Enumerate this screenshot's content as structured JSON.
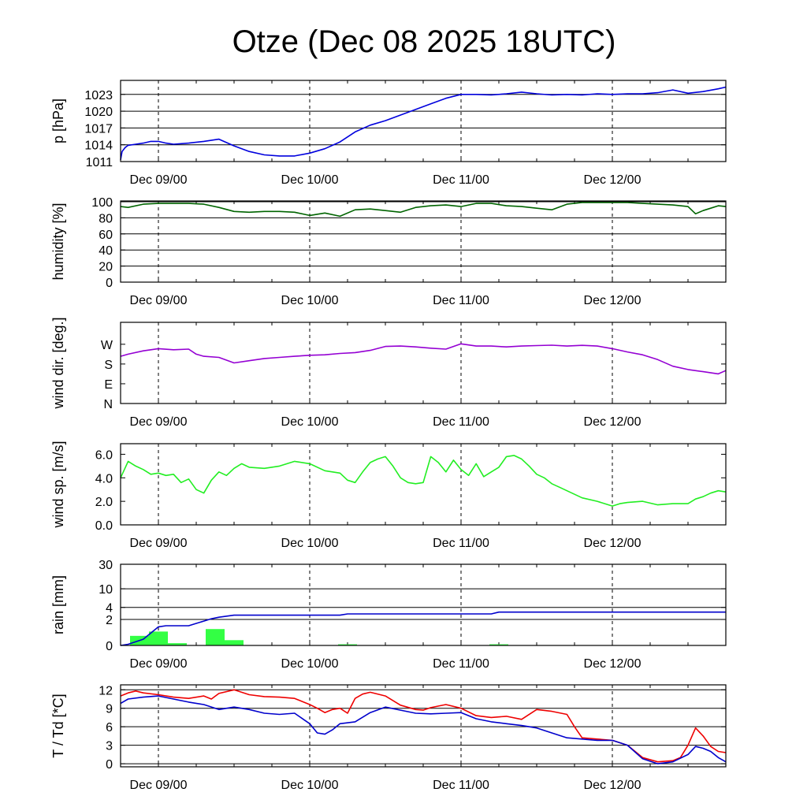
{
  "title": "Otze (Dec 08 2025 18UTC)",
  "x_ticks": [
    "Dec 09/00",
    "Dec 10/00",
    "Dec 11/00",
    "Dec 12/00"
  ],
  "colors": {
    "pressure": "#0000dd",
    "humidity": "#006400",
    "wind_dir": "#9400d3",
    "wind_speed": "#22ee22",
    "rain_bar": "#33ff44",
    "rain_cum": "#0000cc",
    "temperature": "#ee0000",
    "dewpoint": "#0000cc"
  },
  "chart_data": [
    {
      "type": "line",
      "id": "pressure",
      "ylabel": "p [hPa]",
      "yticks": [
        "1023",
        "1020",
        "1017",
        "1014",
        "1011"
      ],
      "ylim": [
        1011,
        1025.5
      ],
      "xlim_days": [
        -0.25,
        3.75
      ],
      "gridlines": [
        1011,
        1014,
        1017,
        1020,
        1023
      ],
      "series": [
        {
          "name": "p",
          "x": [
            -0.25,
            -0.24,
            -0.22,
            -0.2,
            -0.15,
            -0.1,
            -0.05,
            0,
            0.05,
            0.1,
            0.2,
            0.3,
            0.4,
            0.5,
            0.6,
            0.7,
            0.8,
            0.9,
            1.0,
            1.1,
            1.2,
            1.3,
            1.4,
            1.5,
            1.6,
            1.7,
            1.8,
            1.9,
            2.0,
            2.1,
            2.2,
            2.3,
            2.4,
            2.5,
            2.6,
            2.7,
            2.8,
            2.9,
            3.0,
            3.1,
            3.2,
            3.3,
            3.4,
            3.5,
            3.6,
            3.7,
            3.75
          ],
          "values": [
            1011.3,
            1012.8,
            1013.5,
            1013.9,
            1014.1,
            1014.3,
            1014.6,
            1014.6,
            1014.3,
            1014.1,
            1014.3,
            1014.6,
            1015.0,
            1013.8,
            1012.8,
            1012.2,
            1012.0,
            1012.0,
            1012.5,
            1013.3,
            1014.5,
            1016.3,
            1017.5,
            1018.3,
            1019.3,
            1020.3,
            1021.3,
            1022.3,
            1023.0,
            1023.0,
            1022.9,
            1023.1,
            1023.4,
            1023.1,
            1022.9,
            1023.0,
            1022.9,
            1023.1,
            1023.0,
            1023.1,
            1023.1,
            1023.3,
            1023.8,
            1023.2,
            1023.5,
            1024.0,
            1024.3
          ]
        }
      ]
    },
    {
      "type": "line",
      "id": "humidity",
      "ylabel": "humidity [%]",
      "yticks": [
        "100",
        "80",
        "60",
        "40",
        "20",
        "0"
      ],
      "ylim": [
        0,
        101
      ],
      "xlim_days": [
        -0.25,
        3.75
      ],
      "gridlines": [
        0,
        20,
        40,
        60,
        80,
        100
      ],
      "series": [
        {
          "name": "rh",
          "x": [
            -0.25,
            -0.2,
            -0.1,
            0,
            0.1,
            0.2,
            0.3,
            0.4,
            0.5,
            0.6,
            0.7,
            0.8,
            0.9,
            1.0,
            1.1,
            1.2,
            1.3,
            1.4,
            1.5,
            1.6,
            1.7,
            1.8,
            1.9,
            2.0,
            2.1,
            2.2,
            2.3,
            2.4,
            2.5,
            2.6,
            2.7,
            2.8,
            2.9,
            3.0,
            3.1,
            3.2,
            3.3,
            3.4,
            3.5,
            3.55,
            3.6,
            3.65,
            3.7,
            3.75
          ],
          "values": [
            94,
            93,
            97,
            98,
            98,
            98,
            97,
            93,
            88,
            87,
            88,
            88,
            87,
            83,
            86,
            82,
            90,
            91,
            89,
            87,
            93,
            95,
            96,
            94,
            98,
            98,
            95,
            94,
            92,
            90,
            97,
            99,
            99,
            99,
            99,
            98,
            97,
            96,
            94,
            85,
            89,
            92,
            95,
            94
          ]
        }
      ]
    },
    {
      "type": "line",
      "id": "wind_dir",
      "ylabel": "wind dir. [deg.]",
      "yticks": [
        "W",
        "S",
        "E",
        "N"
      ],
      "ylim": [
        0,
        370
      ],
      "xlim_days": [
        -0.25,
        3.75
      ],
      "gridlines": [],
      "series": [
        {
          "name": "dir",
          "x": [
            -0.25,
            -0.2,
            -0.1,
            0,
            0.1,
            0.2,
            0.25,
            0.3,
            0.4,
            0.5,
            0.6,
            0.7,
            0.8,
            0.9,
            1.0,
            1.1,
            1.2,
            1.3,
            1.4,
            1.5,
            1.6,
            1.7,
            1.8,
            1.9,
            2.0,
            2.1,
            2.2,
            2.3,
            2.4,
            2.5,
            2.6,
            2.7,
            2.8,
            2.9,
            3.0,
            3.1,
            3.2,
            3.3,
            3.4,
            3.5,
            3.6,
            3.7,
            3.75
          ],
          "values": [
            215,
            225,
            240,
            250,
            245,
            248,
            225,
            215,
            210,
            185,
            195,
            205,
            210,
            215,
            220,
            222,
            228,
            232,
            242,
            260,
            262,
            258,
            252,
            248,
            272,
            262,
            262,
            258,
            262,
            264,
            266,
            262,
            265,
            262,
            250,
            235,
            222,
            200,
            170,
            155,
            145,
            135,
            150
          ]
        }
      ]
    },
    {
      "type": "line",
      "id": "wind_speed",
      "ylabel": "wind sp. [m/s]",
      "yticks": [
        "6.0",
        "4.0",
        "2.0",
        "0.0"
      ],
      "ylim": [
        0,
        6.9
      ],
      "xlim_days": [
        -0.25,
        3.75
      ],
      "gridlines": [],
      "series": [
        {
          "name": "ff",
          "x": [
            -0.25,
            -0.2,
            -0.15,
            -0.1,
            -0.05,
            0,
            0.05,
            0.1,
            0.15,
            0.2,
            0.25,
            0.3,
            0.35,
            0.4,
            0.45,
            0.5,
            0.55,
            0.6,
            0.7,
            0.8,
            0.9,
            1.0,
            1.1,
            1.2,
            1.25,
            1.3,
            1.35,
            1.4,
            1.45,
            1.5,
            1.55,
            1.6,
            1.65,
            1.7,
            1.75,
            1.8,
            1.85,
            1.9,
            1.95,
            2.0,
            2.05,
            2.1,
            2.15,
            2.2,
            2.25,
            2.3,
            2.35,
            2.4,
            2.45,
            2.5,
            2.55,
            2.6,
            2.65,
            2.7,
            2.8,
            2.9,
            3.0,
            3.05,
            3.1,
            3.2,
            3.3,
            3.4,
            3.5,
            3.55,
            3.6,
            3.65,
            3.7,
            3.75
          ],
          "values": [
            4.0,
            5.4,
            5.0,
            4.7,
            4.3,
            4.4,
            4.2,
            4.3,
            3.6,
            3.9,
            3.0,
            2.7,
            3.8,
            4.5,
            4.2,
            4.8,
            5.2,
            4.9,
            4.8,
            5.0,
            5.4,
            5.2,
            4.6,
            4.4,
            3.8,
            3.6,
            4.5,
            5.3,
            5.6,
            5.8,
            5.0,
            4.0,
            3.6,
            3.5,
            3.6,
            5.8,
            5.3,
            4.5,
            5.5,
            4.7,
            4.2,
            5.2,
            4.1,
            4.5,
            4.9,
            5.8,
            5.9,
            5.6,
            5.0,
            4.3,
            4.0,
            3.5,
            3.2,
            2.9,
            2.3,
            2.0,
            1.6,
            1.8,
            1.9,
            2.0,
            1.7,
            1.8,
            1.8,
            2.2,
            2.4,
            2.7,
            2.9,
            2.8
          ]
        }
      ]
    },
    {
      "type": "bar",
      "id": "rain",
      "ylabel": "rain [mm]",
      "yticks": [
        "30",
        "10",
        "4",
        "2",
        "0"
      ],
      "ylim": [
        0,
        30
      ],
      "xlim_days": [
        -0.25,
        3.75
      ],
      "scale": "log1p",
      "gridlines": [
        2,
        4,
        10,
        30
      ],
      "bars": {
        "x": [
          -0.125,
          0.0,
          0.125,
          0.375,
          0.5,
          1.25,
          2.25
        ],
        "width": 0.125,
        "values": [
          0.5,
          0.8,
          0.1,
          1.0,
          0.25,
          0.05,
          0.05
        ]
      },
      "series": [
        {
          "name": "cumulative",
          "x": [
            -0.25,
            -0.2,
            -0.1,
            0,
            0.05,
            0.1,
            0.2,
            0.3,
            0.35,
            0.4,
            0.5,
            0.7,
            1.0,
            1.2,
            1.25,
            1.5,
            2.0,
            2.2,
            2.25,
            2.5,
            3.0,
            3.5,
            3.75
          ],
          "values": [
            0,
            0.05,
            0.3,
            1.2,
            1.3,
            1.3,
            1.3,
            1.8,
            2.1,
            2.3,
            2.6,
            2.6,
            2.6,
            2.6,
            2.8,
            2.8,
            2.8,
            2.8,
            3.1,
            3.1,
            3.1,
            3.1,
            3.1
          ]
        }
      ]
    },
    {
      "type": "line",
      "id": "temperature",
      "ylabel": "T / Td [*C]",
      "yticks": [
        "12",
        "9",
        "6",
        "3",
        "0"
      ],
      "ylim": [
        -0.5,
        12.8
      ],
      "xlim_days": [
        -0.25,
        3.75
      ],
      "gridlines": [
        0,
        3,
        6,
        9,
        12
      ],
      "series": [
        {
          "name": "T",
          "x": [
            -0.25,
            -0.2,
            -0.15,
            -0.1,
            0,
            0.1,
            0.2,
            0.3,
            0.35,
            0.4,
            0.5,
            0.6,
            0.7,
            0.8,
            0.9,
            1.0,
            1.05,
            1.1,
            1.15,
            1.2,
            1.25,
            1.3,
            1.35,
            1.4,
            1.5,
            1.6,
            1.7,
            1.75,
            1.8,
            1.9,
            2.0,
            2.1,
            2.2,
            2.3,
            2.4,
            2.5,
            2.6,
            2.7,
            2.75,
            2.8,
            2.9,
            3.0,
            3.1,
            3.2,
            3.3,
            3.4,
            3.45,
            3.5,
            3.55,
            3.6,
            3.65,
            3.7,
            3.75
          ],
          "values": [
            11,
            11.5,
            11.8,
            11.5,
            11.2,
            10.8,
            10.6,
            11.0,
            10.5,
            11.4,
            12.0,
            11.2,
            10.9,
            10.8,
            10.6,
            9.6,
            9.0,
            8.3,
            8.8,
            9.0,
            8.2,
            10.6,
            11.3,
            11.6,
            11.0,
            9.5,
            8.8,
            8.7,
            9.1,
            9.6,
            9.0,
            7.8,
            7.5,
            7.7,
            7.2,
            8.8,
            8.5,
            8.0,
            6.0,
            4.2,
            4.0,
            3.8,
            3.0,
            1.0,
            0.3,
            0.5,
            1.0,
            3.0,
            5.8,
            4.5,
            2.8,
            2.0,
            1.8
          ]
        },
        {
          "name": "Td",
          "x": [
            -0.25,
            -0.2,
            -0.1,
            0,
            0.1,
            0.2,
            0.3,
            0.4,
            0.5,
            0.6,
            0.7,
            0.8,
            0.9,
            1.0,
            1.05,
            1.1,
            1.15,
            1.2,
            1.3,
            1.4,
            1.5,
            1.6,
            1.7,
            1.8,
            1.9,
            2.0,
            2.1,
            2.2,
            2.3,
            2.4,
            2.5,
            2.6,
            2.7,
            2.8,
            2.9,
            3.0,
            3.1,
            3.2,
            3.3,
            3.4,
            3.5,
            3.55,
            3.6,
            3.65,
            3.7,
            3.75
          ],
          "values": [
            9.8,
            10.5,
            10.8,
            11.0,
            10.5,
            10.0,
            9.6,
            8.8,
            9.2,
            8.8,
            8.2,
            8.0,
            8.2,
            6.5,
            5.0,
            4.8,
            5.5,
            6.5,
            6.8,
            8.3,
            9.2,
            8.7,
            8.2,
            8.1,
            8.2,
            8.3,
            7.3,
            6.8,
            6.5,
            6.2,
            5.8,
            5.0,
            4.2,
            4.0,
            3.8,
            3.8,
            3.0,
            0.8,
            0.0,
            0.3,
            1.5,
            2.8,
            2.5,
            2.0,
            1.0,
            0.3
          ]
        }
      ]
    }
  ]
}
